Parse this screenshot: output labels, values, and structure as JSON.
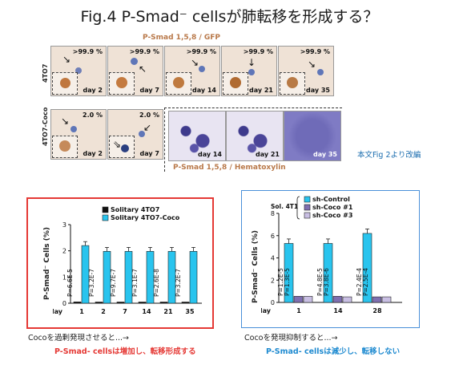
{
  "title": "Fig.4 P-Smad⁻ cellsが肺転移を形成する？",
  "top_caption": "P-Smad 1,5,8 / GFP",
  "bottom_caption": "P-Smad 1,5,8 / Hematoxylin",
  "source_note": "本文Fig 2より改編",
  "row_labels": [
    "4TO7",
    "4TO7-Coco"
  ],
  "row1": [
    {
      "pct": ">99.9 %",
      "day": "day 2"
    },
    {
      "pct": ">99.9 %",
      "day": "day 7"
    },
    {
      "pct": ">99.9 %",
      "day": "day 14"
    },
    {
      "pct": ">99.9 %",
      "day": "day 21"
    },
    {
      "pct": ">99.9 %",
      "day": "day 35"
    }
  ],
  "row2_gfp": [
    {
      "pct": "2.0 %",
      "day": "day 2"
    },
    {
      "pct": "2.0 %",
      "day": "day 7"
    }
  ],
  "row2_he": [
    {
      "day": "day 14"
    },
    {
      "day": "day 21"
    },
    {
      "day": "day 35"
    }
  ],
  "left_note": "Cocoを過剰発現させると...→",
  "left_conclusion": "P-Smad- cellsは増加し、転移形成する",
  "right_note": "Cocoを発現抑制すると...→",
  "right_conclusion": "P-Smad- cellsは減少し、転移しない",
  "chart_data": [
    {
      "type": "bar",
      "ylabel": "P-Smad⁻ Cells (%)",
      "ylim": [
        0,
        3
      ],
      "yticks": [
        "0",
        "1",
        "2",
        "3"
      ],
      "xlabel": "day",
      "categories": [
        "1",
        "2",
        "7",
        "14",
        "21",
        "35"
      ],
      "series": [
        {
          "name": "Solitary 4TO7",
          "color": "#111111",
          "values": [
            0.05,
            0.03,
            0.03,
            0.03,
            0.03,
            0.03
          ]
        },
        {
          "name": "Solitary 4TO7-Coco",
          "color": "#29c4ee",
          "values": [
            2.2,
            1.98,
            1.98,
            1.98,
            1.98,
            1.98
          ]
        }
      ],
      "annotations": [
        "P=6.6E-5",
        "P=3.2E-7",
        "P=9.7E-7",
        "P=3.1E-7",
        "P=2.6E-8",
        "P=3.2E-7"
      ]
    },
    {
      "type": "bar",
      "ylabel": "P-Smad⁻ Cells (%)",
      "ylim": [
        0,
        8
      ],
      "yticks": [
        "0",
        "2",
        "4",
        "6",
        "8"
      ],
      "xlabel": "day",
      "categories": [
        "1",
        "14",
        "28"
      ],
      "legend_group": "Sol. 4T1",
      "series": [
        {
          "name": "sh-Control",
          "color": "#29c4ee",
          "values": [
            5.3,
            5.3,
            6.2
          ]
        },
        {
          "name": "sh-Coco #1",
          "color": "#7f6fb0",
          "values": [
            0.55,
            0.55,
            0.5
          ]
        },
        {
          "name": "sh-Coco #3",
          "color": "#c9bfe3",
          "values": [
            0.55,
            0.5,
            0.5
          ]
        }
      ],
      "annotations": [
        [
          "P=1.2E-5",
          "P=1.3E-5"
        ],
        [
          "P=4.8E-5",
          "P=3.8E-6"
        ],
        [
          "P=2.4E-4",
          "P=2.5E-4"
        ]
      ]
    }
  ]
}
